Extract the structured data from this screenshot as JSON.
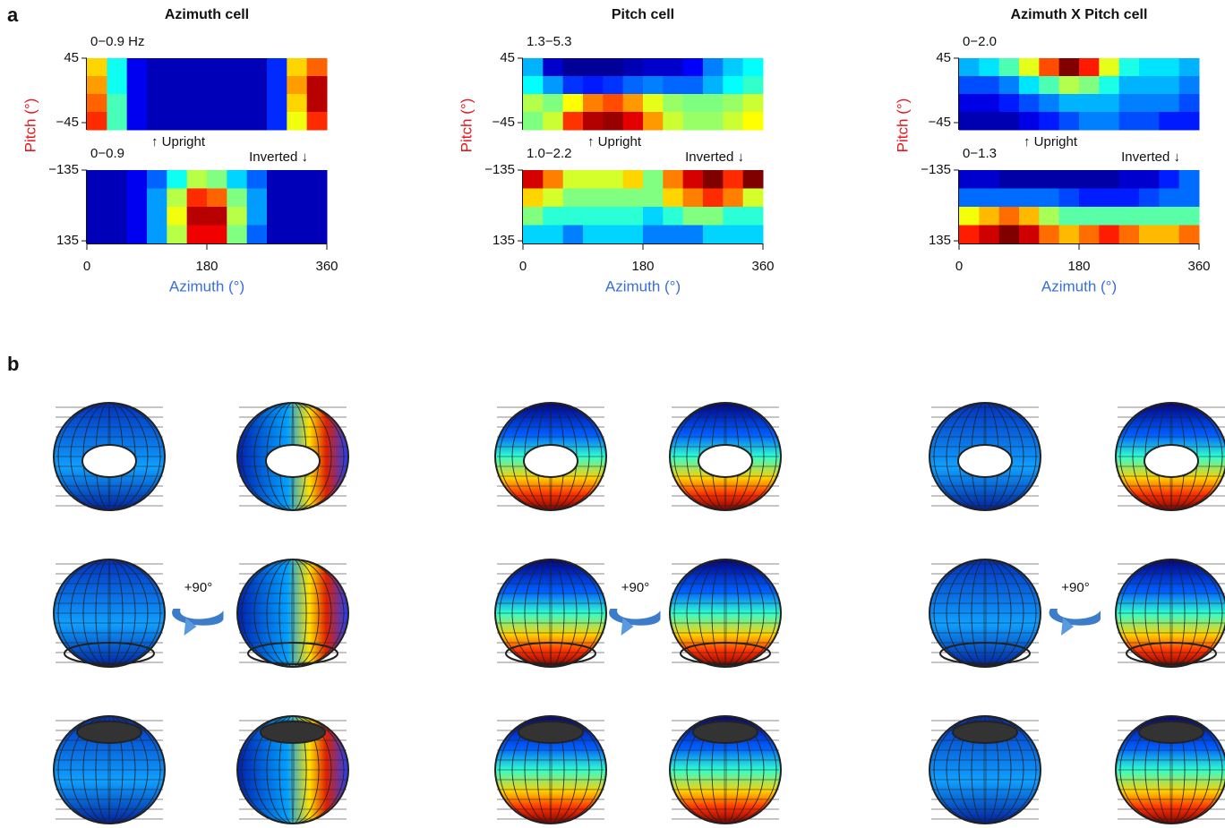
{
  "figure_labels": [
    "a",
    "b"
  ],
  "rotation_label": "+90°",
  "chart_data": [
    {
      "type": "heatmap",
      "title": "Azimuth cell",
      "ylabel": "Pitch (°)",
      "xlabel": "Azimuth (°)",
      "xlim": [
        0,
        360
      ],
      "xticks": [
        0,
        180,
        360
      ],
      "upright": {
        "label": "↑ Upright",
        "range_label": "0−0.9 Hz",
        "clim": [
          0,
          0.9
        ],
        "ylim": [
          -55,
          45
        ],
        "yticks": [
          45,
          {
            "value": -45,
            "label": "−45"
          }
        ],
        "values": [
          [
            0.6,
            0.35,
            0.1,
            0.05,
            0.05,
            0.05,
            0.05,
            0.05,
            0.05,
            0.15,
            0.6,
            0.7
          ],
          [
            0.65,
            0.35,
            0.1,
            0.05,
            0.05,
            0.05,
            0.05,
            0.05,
            0.05,
            0.15,
            0.65,
            0.85
          ],
          [
            0.7,
            0.4,
            0.1,
            0.05,
            0.05,
            0.05,
            0.05,
            0.05,
            0.05,
            0.15,
            0.6,
            0.85
          ],
          [
            0.75,
            0.4,
            0.1,
            0.05,
            0.05,
            0.05,
            0.05,
            0.05,
            0.05,
            0.15,
            0.55,
            0.75
          ]
        ]
      },
      "inverted": {
        "label": "Inverted ↓",
        "range_label": "0−0.9",
        "clim": [
          0,
          0.9
        ],
        "ylim": [
          145,
          -135
        ],
        "yticks": [
          {
            "value": -135,
            "label": "−135"
          },
          135
        ],
        "values": [
          [
            0.05,
            0.05,
            0.1,
            0.2,
            0.35,
            0.5,
            0.45,
            0.3,
            0.2,
            0.05,
            0.05,
            0.05
          ],
          [
            0.05,
            0.05,
            0.1,
            0.25,
            0.5,
            0.75,
            0.7,
            0.45,
            0.25,
            0.05,
            0.05,
            0.05
          ],
          [
            0.05,
            0.05,
            0.1,
            0.25,
            0.55,
            0.85,
            0.85,
            0.5,
            0.25,
            0.05,
            0.05,
            0.05
          ],
          [
            0.05,
            0.05,
            0.1,
            0.25,
            0.5,
            0.8,
            0.8,
            0.45,
            0.2,
            0.05,
            0.05,
            0.05
          ]
        ]
      }
    },
    {
      "type": "heatmap",
      "title": "Pitch cell",
      "ylabel": "Pitch (°)",
      "xlabel": "Azimuth (°)",
      "xlim": [
        0,
        360
      ],
      "xticks": [
        0,
        180,
        360
      ],
      "upright": {
        "label": "↑ Upright",
        "range_label": "1.3−5.3",
        "clim": [
          1.3,
          5.3
        ],
        "ylim": [
          -55,
          45
        ],
        "yticks": [
          45,
          {
            "value": -45,
            "label": "−45"
          }
        ],
        "values": [
          [
            2.5,
            1.6,
            1.4,
            1.4,
            1.4,
            1.5,
            1.6,
            1.6,
            1.8,
            2.3,
            2.6,
            2.8
          ],
          [
            2.8,
            2.4,
            2.0,
            1.9,
            2.0,
            2.2,
            2.3,
            2.2,
            2.2,
            2.5,
            2.8,
            3.0
          ],
          [
            3.5,
            3.3,
            3.8,
            4.3,
            4.5,
            4.2,
            3.7,
            3.4,
            3.3,
            3.3,
            3.4,
            3.6
          ],
          [
            3.3,
            3.6,
            4.6,
            5.1,
            5.2,
            4.9,
            4.2,
            3.6,
            3.4,
            3.4,
            3.6,
            3.8
          ]
        ]
      },
      "inverted": {
        "label": "Inverted ↓",
        "range_label": "1.0−2.2",
        "clim": [
          1.0,
          2.2
        ],
        "ylim": [
          145,
          -135
        ],
        "yticks": [
          {
            "value": -135,
            "label": "−135"
          },
          135
        ],
        "values": [
          [
            2.1,
            1.9,
            1.7,
            1.7,
            1.7,
            1.8,
            1.6,
            1.9,
            2.1,
            2.2,
            2.0,
            2.2
          ],
          [
            1.8,
            1.7,
            1.6,
            1.6,
            1.6,
            1.6,
            1.6,
            1.8,
            1.9,
            2.0,
            1.9,
            1.7
          ],
          [
            1.6,
            1.5,
            1.5,
            1.5,
            1.5,
            1.5,
            1.4,
            1.5,
            1.6,
            1.6,
            1.5,
            1.5
          ],
          [
            1.4,
            1.4,
            1.3,
            1.4,
            1.4,
            1.4,
            1.3,
            1.3,
            1.3,
            1.4,
            1.4,
            1.4
          ]
        ]
      }
    },
    {
      "type": "heatmap",
      "title": "Azimuth X Pitch cell",
      "ylabel": "Pitch (°)",
      "xlabel": "Azimuth (°)",
      "xlim": [
        0,
        360
      ],
      "xticks": [
        0,
        180,
        360
      ],
      "upright": {
        "label": "↑ Upright",
        "range_label": "0−2.0",
        "clim": [
          0,
          2.0
        ],
        "ylim": [
          -55,
          45
        ],
        "yticks": [
          45,
          {
            "value": -45,
            "label": "−45"
          }
        ],
        "values": [
          [
            0.6,
            0.7,
            0.9,
            1.2,
            1.6,
            2.0,
            1.7,
            1.2,
            0.8,
            0.7,
            0.7,
            0.6
          ],
          [
            0.4,
            0.4,
            0.5,
            0.7,
            0.9,
            1.1,
            1.0,
            0.8,
            0.6,
            0.6,
            0.6,
            0.5
          ],
          [
            0.2,
            0.2,
            0.3,
            0.4,
            0.5,
            0.6,
            0.6,
            0.6,
            0.5,
            0.5,
            0.5,
            0.4
          ],
          [
            0.1,
            0.1,
            0.1,
            0.2,
            0.3,
            0.4,
            0.5,
            0.5,
            0.4,
            0.4,
            0.3,
            0.3
          ]
        ]
      },
      "inverted": {
        "label": "Inverted ↓",
        "range_label": "0−1.3",
        "clim": [
          0,
          1.3
        ],
        "ylim": [
          145,
          -135
        ],
        "yticks": [
          {
            "value": -135,
            "label": "−135"
          },
          135
        ],
        "values": [
          [
            0.1,
            0.1,
            0.05,
            0.05,
            0.05,
            0.05,
            0.05,
            0.05,
            0.1,
            0.1,
            0.2,
            0.3
          ],
          [
            0.3,
            0.3,
            0.3,
            0.3,
            0.3,
            0.25,
            0.2,
            0.2,
            0.2,
            0.25,
            0.3,
            0.3
          ],
          [
            0.8,
            0.9,
            1.0,
            0.9,
            0.7,
            0.6,
            0.6,
            0.6,
            0.6,
            0.6,
            0.6,
            0.6
          ],
          [
            1.1,
            1.2,
            1.3,
            1.2,
            1.0,
            0.9,
            1.0,
            1.1,
            1.0,
            0.9,
            0.9,
            1.0
          ]
        ]
      }
    }
  ]
}
